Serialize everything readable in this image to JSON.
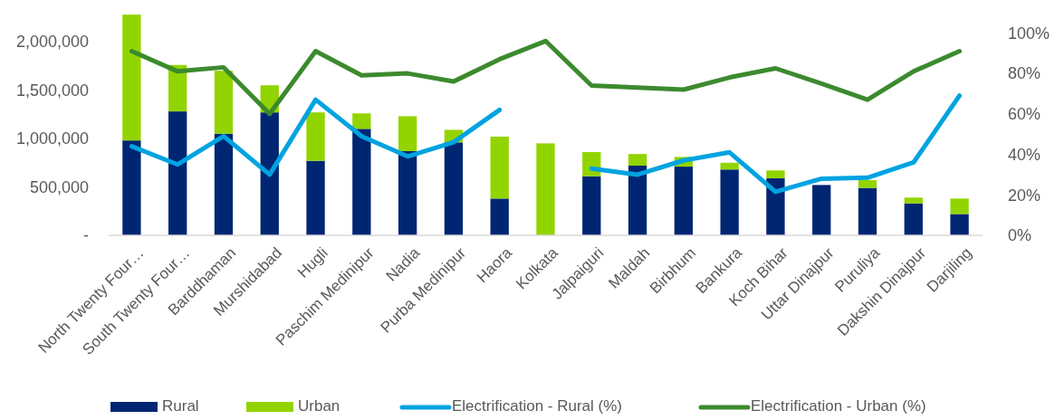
{
  "chart_data": {
    "type": "bar",
    "stacked": true,
    "legend": "bottom",
    "grid": false,
    "categories": [
      "North Twenty Four…",
      "South Twenty Four…",
      "Barddhaman",
      "Murshidabad",
      "Hugli",
      "Paschim Medinipur",
      "Nadia",
      "Purba Medinipur",
      "Haora",
      "Kolkata",
      "Jalpaiguri",
      "Maldah",
      "Birbhum",
      "Bankura",
      "Koch Bihar",
      "Uttar Dinajpur",
      "Puruliya",
      "Dakshin Dinajpur",
      "Darjiling"
    ],
    "ylim": [
      0,
      2300000
    ],
    "yticks": [
      {
        "value": 0,
        "label": "-"
      },
      {
        "value": 500000,
        "label": "500,000"
      },
      {
        "value": 1000000,
        "label": "1,000,000"
      },
      {
        "value": 1500000,
        "label": "1,500,000"
      },
      {
        "value": 2000000,
        "label": "2,000,000"
      }
    ],
    "y2lim": [
      0,
      110
    ],
    "y2ticks": [
      {
        "value": 0,
        "label": "0%"
      },
      {
        "value": 20,
        "label": "20%"
      },
      {
        "value": 40,
        "label": "40%"
      },
      {
        "value": 60,
        "label": "60%"
      },
      {
        "value": 80,
        "label": "80%"
      },
      {
        "value": 100,
        "label": "100%"
      }
    ],
    "series": [
      {
        "name": "Rural",
        "color": "#002673",
        "values": [
          980000,
          1280000,
          1050000,
          1270000,
          770000,
          1100000,
          870000,
          960000,
          380000,
          0,
          610000,
          720000,
          710000,
          680000,
          590000,
          520000,
          490000,
          330000,
          220000
        ]
      },
      {
        "name": "Urban",
        "color": "#92d400",
        "values": [
          1300000,
          480000,
          650000,
          280000,
          500000,
          160000,
          360000,
          130000,
          640000,
          950000,
          250000,
          120000,
          100000,
          70000,
          80000,
          null,
          80000,
          60000,
          160000
        ]
      },
      {
        "name": "Electrification - Rural (%)",
        "type": "line",
        "axis": "y2",
        "color": "#00a3e0",
        "values": [
          44,
          35,
          49,
          30,
          67,
          49,
          39,
          46,
          62,
          null,
          33,
          30,
          37,
          41,
          21.5,
          28,
          28.5,
          36,
          69
        ]
      },
      {
        "name": "Electrification - Urban (%)",
        "type": "line",
        "axis": "y2",
        "color": "#3c8a2e",
        "values": [
          91,
          81,
          83,
          60,
          91,
          79,
          80,
          76,
          87,
          96,
          74,
          73,
          72,
          78,
          82.5,
          75,
          67,
          81,
          91
        ]
      }
    ]
  }
}
